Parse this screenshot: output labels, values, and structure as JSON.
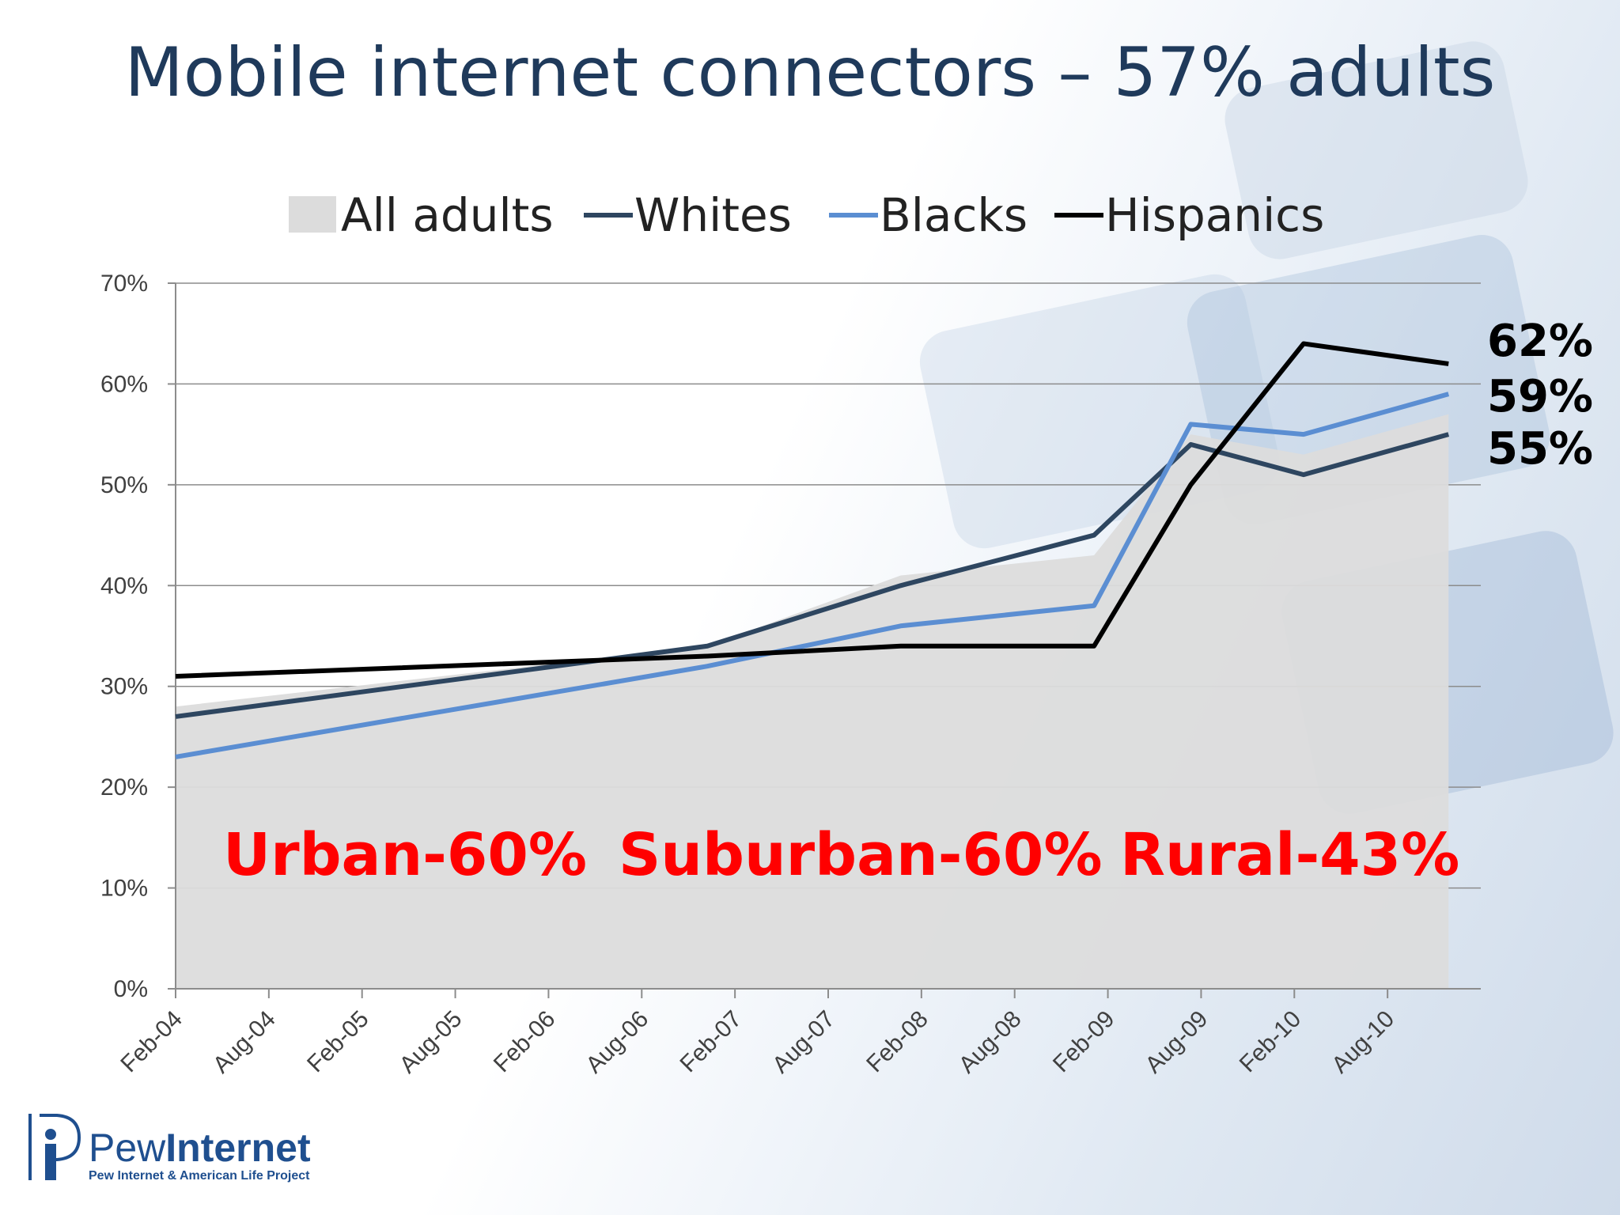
{
  "slide": {
    "title": "Mobile internet connectors – 57% adults"
  },
  "logo": {
    "name_part1": "Pew",
    "name_part2": "Internet",
    "subtitle": "Pew Internet & American Life Project"
  },
  "annotations": [
    {
      "text": "Urban-60%",
      "color": "#ff0000"
    },
    {
      "text": "Suburban-60%",
      "color": "#ff0000"
    },
    {
      "text": "Rural-43%",
      "color": "#ff0000"
    }
  ],
  "end_labels": [
    "62%",
    "59%",
    "55%"
  ],
  "chart_data": {
    "type": "line",
    "x_ticks": [
      "Feb-04",
      "Aug-04",
      "Feb-05",
      "Aug-05",
      "Feb-06",
      "Aug-06",
      "Feb-07",
      "Aug-07",
      "Feb-08",
      "Aug-08",
      "Feb-09",
      "Aug-09",
      "Feb-10",
      "Aug-10"
    ],
    "y_ticks": [
      "0%",
      "10%",
      "20%",
      "30%",
      "40%",
      "50%",
      "60%",
      "70%"
    ],
    "ylim": [
      0,
      70
    ],
    "grid": true,
    "legend_position": "top",
    "series": [
      {
        "name": "All adults",
        "kind": "area",
        "color": "#dcdcdc",
        "points": [
          {
            "x": "2004-02",
            "y": 28
          },
          {
            "x": "2006-11",
            "y": 34
          },
          {
            "x": "2007-11",
            "y": 41
          },
          {
            "x": "2008-11",
            "y": 43
          },
          {
            "x": "2009-05",
            "y": 55
          },
          {
            "x": "2009-12",
            "y": 53
          },
          {
            "x": "2010-09",
            "y": 57
          }
        ]
      },
      {
        "name": "Whites",
        "kind": "line",
        "color": "#2e4660",
        "points": [
          {
            "x": "2004-02",
            "y": 27
          },
          {
            "x": "2006-11",
            "y": 34
          },
          {
            "x": "2007-11",
            "y": 40
          },
          {
            "x": "2008-11",
            "y": 45
          },
          {
            "x": "2009-05",
            "y": 54
          },
          {
            "x": "2009-12",
            "y": 51
          },
          {
            "x": "2010-09",
            "y": 55
          }
        ]
      },
      {
        "name": "Blacks",
        "kind": "line",
        "color": "#5b8ed2",
        "points": [
          {
            "x": "2004-02",
            "y": 23
          },
          {
            "x": "2006-11",
            "y": 32
          },
          {
            "x": "2007-11",
            "y": 36
          },
          {
            "x": "2008-11",
            "y": 38
          },
          {
            "x": "2009-05",
            "y": 56
          },
          {
            "x": "2009-12",
            "y": 55
          },
          {
            "x": "2010-09",
            "y": 59
          }
        ]
      },
      {
        "name": "Hispanics",
        "kind": "line",
        "color": "#000000",
        "points": [
          {
            "x": "2004-02",
            "y": 31
          },
          {
            "x": "2006-11",
            "y": 33
          },
          {
            "x": "2007-11",
            "y": 34
          },
          {
            "x": "2008-11",
            "y": 34
          },
          {
            "x": "2009-05",
            "y": 50
          },
          {
            "x": "2009-12",
            "y": 64
          },
          {
            "x": "2010-09",
            "y": 62
          }
        ]
      }
    ]
  }
}
